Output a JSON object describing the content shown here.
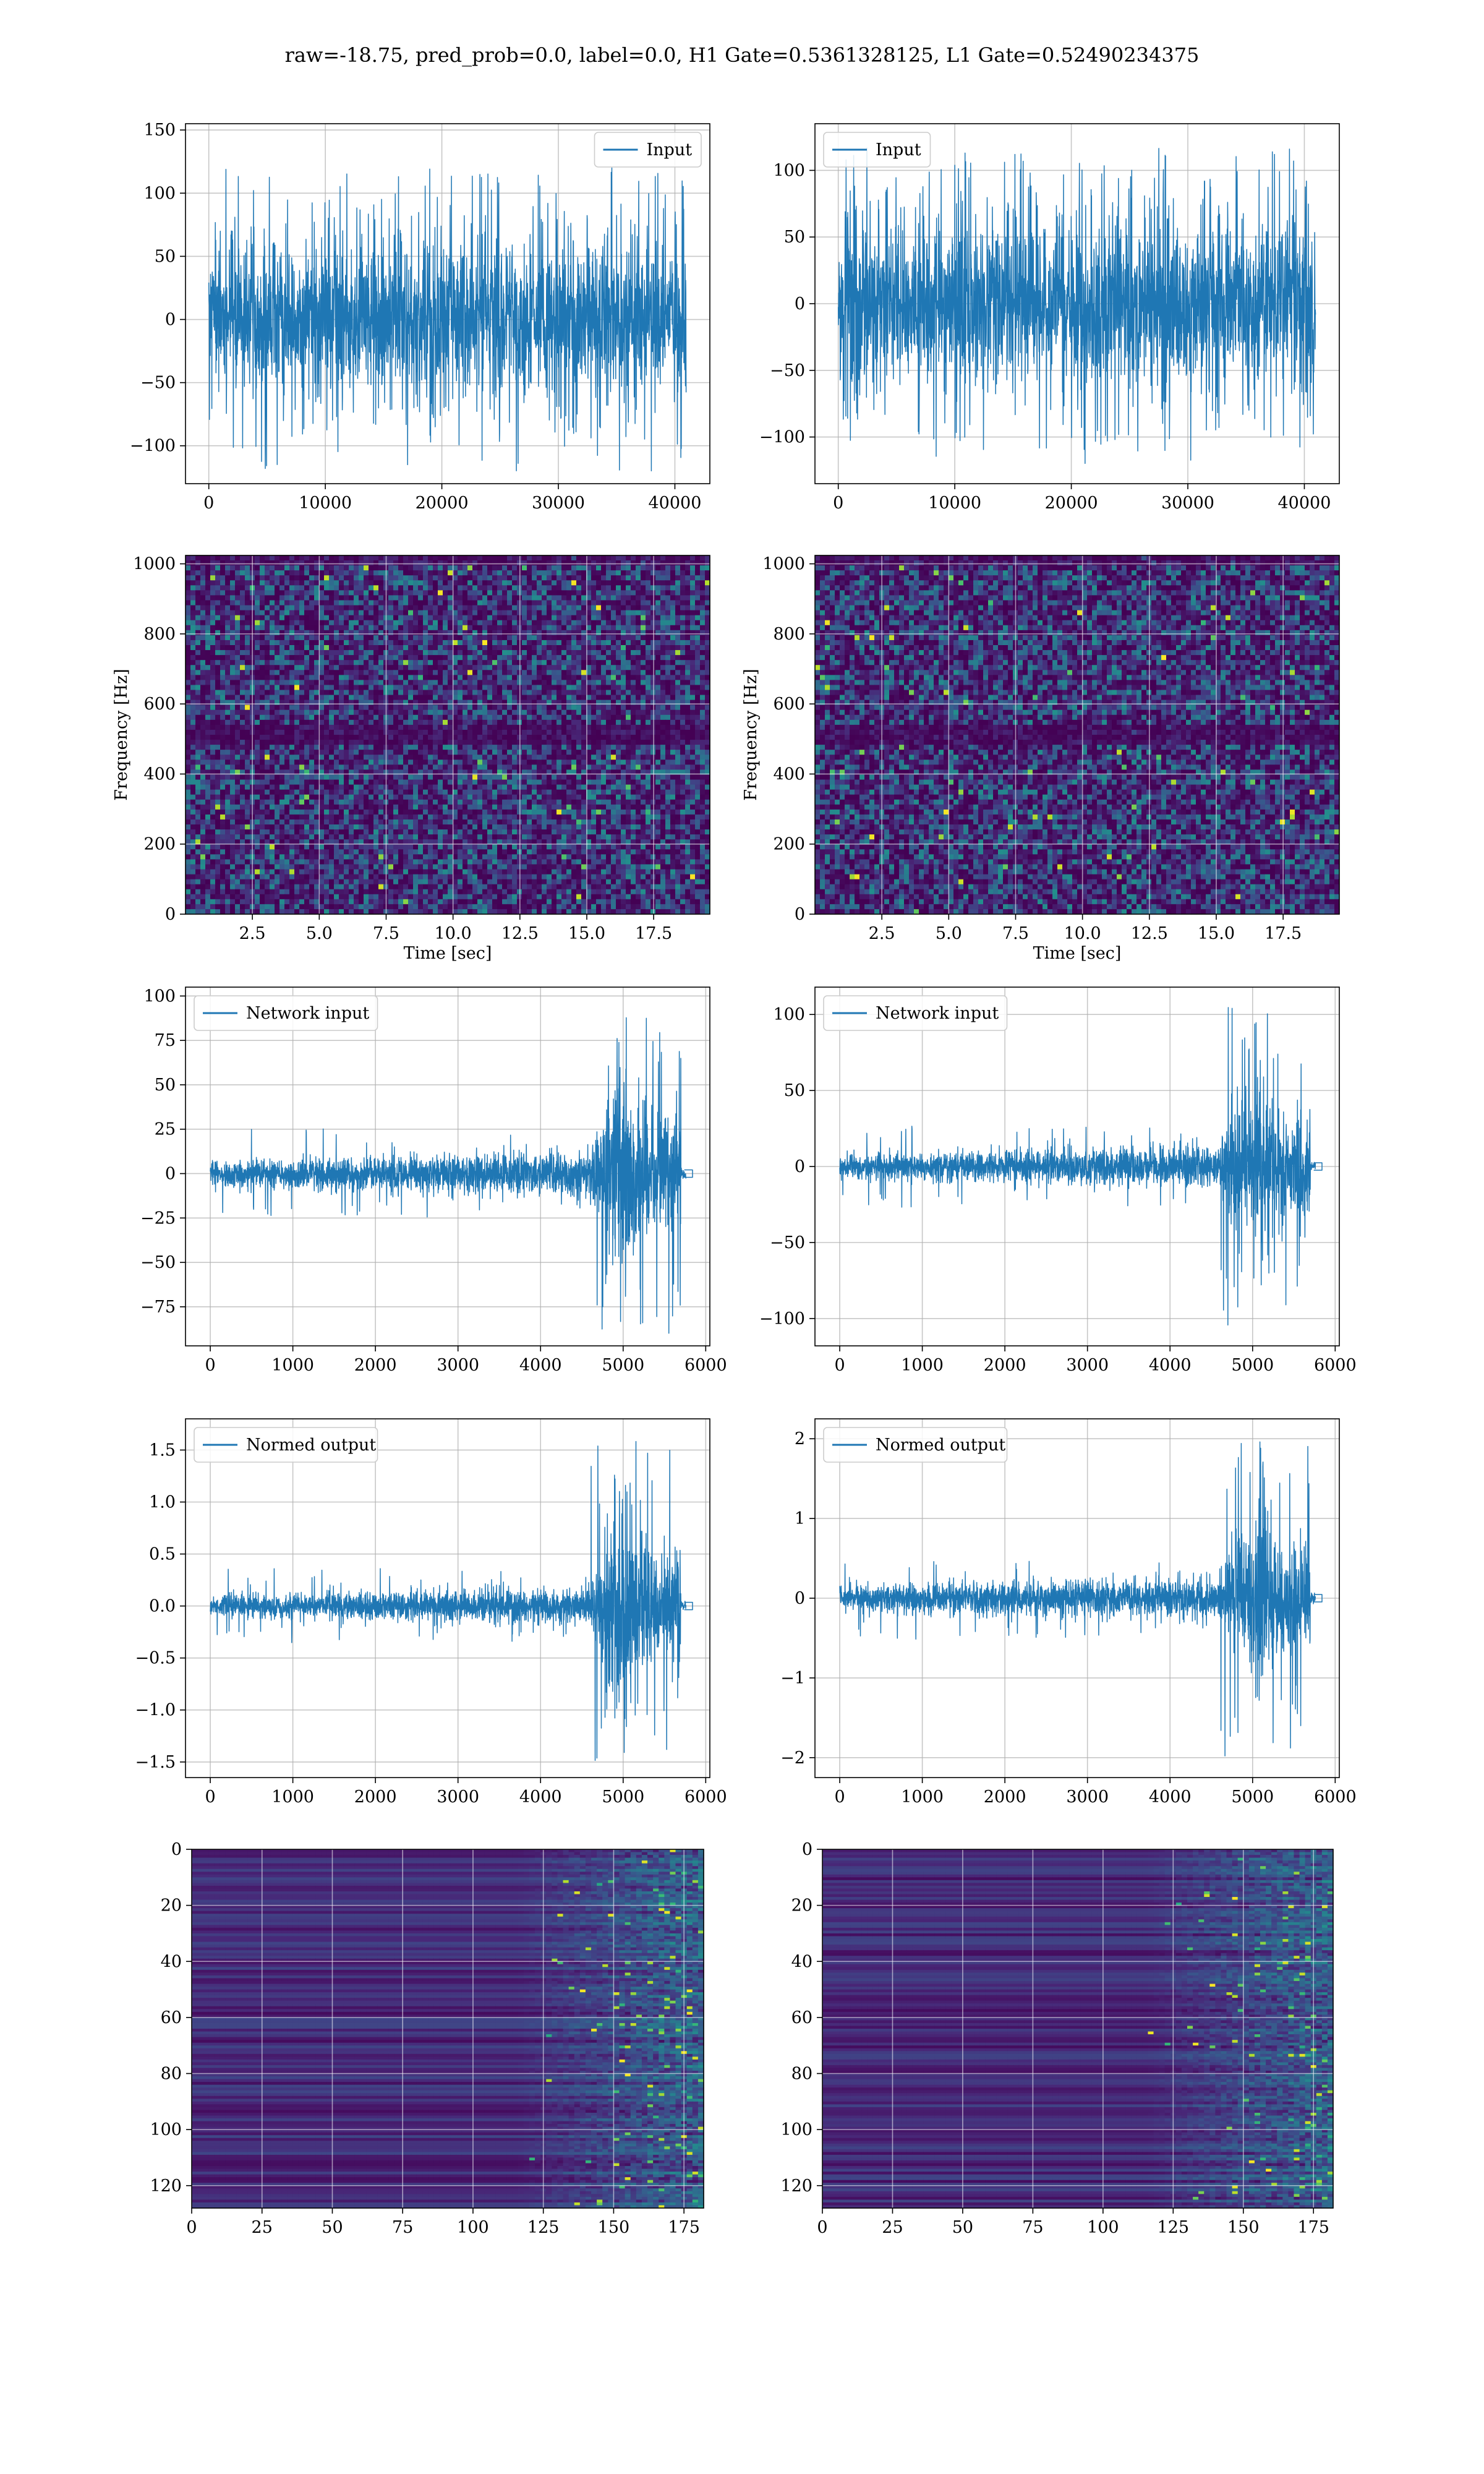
{
  "figure": {
    "title": "raw=-18.75, pred_prob=0.0, label=0.0, H1 Gate=0.5361328125, L1 Gate=0.52490234375"
  },
  "colors": {
    "line": "#1f77b4",
    "grid": "#b0b0b0",
    "viridis_low": "#440154",
    "viridis_mid": "#21918c",
    "viridis_high": "#fde725"
  },
  "chart_data": [
    {
      "id": "row1-left",
      "type": "line",
      "style": "noise",
      "series": [
        {
          "name": "Input",
          "n": 40960,
          "amplitude_band": 55,
          "peak_range": [
            -120,
            120
          ]
        }
      ],
      "legend": "top-right",
      "xlim": [
        -2000,
        43000
      ],
      "ylim": [
        -130,
        155
      ],
      "xticks": [
        0,
        10000,
        20000,
        30000,
        40000
      ],
      "yticks": [
        -100,
        -50,
        0,
        50,
        100,
        150
      ],
      "grid": true,
      "xlabel": "",
      "ylabel": ""
    },
    {
      "id": "row1-right",
      "type": "line",
      "style": "noise",
      "series": [
        {
          "name": "Input",
          "n": 40960,
          "amplitude_band": 55,
          "peak_range": [
            -120,
            118
          ]
        }
      ],
      "legend": "top-left",
      "xlim": [
        -2000,
        43000
      ],
      "ylim": [
        -135,
        135
      ],
      "xticks": [
        0,
        10000,
        20000,
        30000,
        40000
      ],
      "yticks": [
        -100,
        -50,
        0,
        50,
        100
      ],
      "grid": true,
      "xlabel": "",
      "ylabel": ""
    },
    {
      "id": "row2-left",
      "type": "heatmap",
      "colormap": "viridis",
      "style": "spectrogram",
      "xlim": [
        0,
        19.6
      ],
      "ylim": [
        0,
        1024
      ],
      "xticks": [
        2.5,
        5.0,
        7.5,
        10.0,
        12.5,
        15.0,
        17.5
      ],
      "yticks": [
        0,
        200,
        400,
        600,
        800,
        1000
      ],
      "xlabel": "Time [sec]",
      "ylabel": "Frequency [Hz]",
      "grid": true
    },
    {
      "id": "row2-right",
      "type": "heatmap",
      "colormap": "viridis",
      "style": "spectrogram",
      "xlim": [
        0,
        19.6
      ],
      "ylim": [
        0,
        1024
      ],
      "xticks": [
        2.5,
        5.0,
        7.5,
        10.0,
        12.5,
        15.0,
        17.5
      ],
      "yticks": [
        0,
        200,
        400,
        600,
        800,
        1000
      ],
      "xlabel": "Time [sec]",
      "ylabel": "Frequency [Hz]",
      "grid": true
    },
    {
      "id": "row3-left",
      "type": "line",
      "style": "chirp",
      "series": [
        {
          "name": "Network input",
          "n": 5760,
          "base_band": 14,
          "chirp_start": 4600,
          "chirp_end": 5700,
          "peak": 97,
          "trough": -90
        }
      ],
      "legend": "top-left",
      "xlim": [
        -300,
        6050
      ],
      "ylim": [
        -97,
        105
      ],
      "xticks": [
        0,
        1000,
        2000,
        3000,
        4000,
        5000,
        6000
      ],
      "yticks": [
        -75,
        -50,
        -25,
        0,
        25,
        50,
        75,
        100
      ],
      "grid": true,
      "xlabel": "",
      "ylabel": ""
    },
    {
      "id": "row3-right",
      "type": "line",
      "style": "chirp",
      "series": [
        {
          "name": "Network input",
          "n": 5760,
          "base_band": 15,
          "chirp_start": 4600,
          "chirp_end": 5700,
          "peak": 107,
          "trough": -107
        }
      ],
      "legend": "top-left",
      "xlim": [
        -300,
        6050
      ],
      "ylim": [
        -118,
        118
      ],
      "xticks": [
        0,
        1000,
        2000,
        3000,
        4000,
        5000,
        6000
      ],
      "yticks": [
        -100,
        -50,
        0,
        50,
        100
      ],
      "grid": true,
      "xlabel": "",
      "ylabel": ""
    },
    {
      "id": "row4-left",
      "type": "line",
      "style": "chirp",
      "series": [
        {
          "name": "Normed output",
          "n": 5760,
          "base_band": 0.2,
          "chirp_start": 4600,
          "chirp_end": 5700,
          "peak": 1.6,
          "trough": -1.5
        }
      ],
      "legend": "top-left",
      "xlim": [
        -300,
        6050
      ],
      "ylim": [
        -1.65,
        1.8
      ],
      "xticks": [
        0,
        1000,
        2000,
        3000,
        4000,
        5000,
        6000
      ],
      "yticks": [
        -1.5,
        -1.0,
        -0.5,
        0.0,
        0.5,
        1.0,
        1.5
      ],
      "grid": true,
      "xlabel": "",
      "ylabel": ""
    },
    {
      "id": "row4-right",
      "type": "line",
      "style": "chirp",
      "series": [
        {
          "name": "Normed output",
          "n": 5760,
          "base_band": 0.3,
          "chirp_start": 4600,
          "chirp_end": 5700,
          "peak": 2.05,
          "trough": -2.05
        }
      ],
      "legend": "top-left",
      "xlim": [
        -300,
        6050
      ],
      "ylim": [
        -2.25,
        2.25
      ],
      "xticks": [
        0,
        1000,
        2000,
        3000,
        4000,
        5000,
        6000
      ],
      "yticks": [
        -2,
        -1,
        0,
        1,
        2
      ],
      "grid": true,
      "xlabel": "",
      "ylabel": ""
    },
    {
      "id": "row5-left",
      "type": "heatmap",
      "colormap": "viridis",
      "style": "qtransform",
      "inverted_y": true,
      "xlim": [
        0,
        182
      ],
      "ylim": [
        0,
        128
      ],
      "xticks": [
        0,
        25,
        50,
        75,
        100,
        125,
        150,
        175
      ],
      "yticks": [
        0,
        20,
        40,
        60,
        80,
        100,
        120
      ],
      "grid": true,
      "xlabel": "",
      "ylabel": ""
    },
    {
      "id": "row5-right",
      "type": "heatmap",
      "colormap": "viridis",
      "style": "qtransform",
      "inverted_y": true,
      "xlim": [
        0,
        182
      ],
      "ylim": [
        0,
        128
      ],
      "xticks": [
        0,
        25,
        50,
        75,
        100,
        125,
        150,
        175
      ],
      "yticks": [
        0,
        20,
        40,
        60,
        80,
        100,
        120
      ],
      "grid": true,
      "xlabel": "",
      "ylabel": ""
    }
  ]
}
